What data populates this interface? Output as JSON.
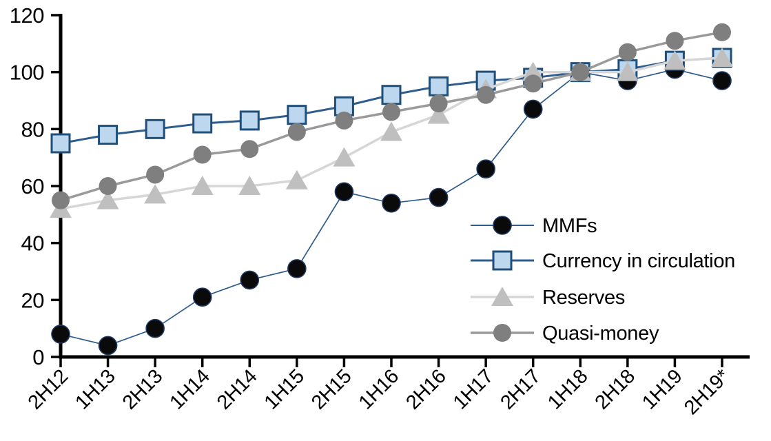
{
  "chart_data": {
    "type": "line",
    "title": "",
    "xlabel": "",
    "ylabel": "",
    "ylim": [
      0,
      120
    ],
    "ytick_step": 20,
    "yticks": [
      0,
      20,
      40,
      60,
      80,
      100,
      120
    ],
    "grid": false,
    "categories": [
      "2H12",
      "1H13",
      "2H13",
      "1H14",
      "2H14",
      "1H15",
      "2H15",
      "1H16",
      "2H16",
      "1H17",
      "2H17",
      "1H18",
      "2H18",
      "1H19",
      "2H19*"
    ],
    "series": [
      {
        "name": "MMFs",
        "marker": "circle",
        "marker_fill": "#0a0a0a",
        "marker_stroke": "#1f3864",
        "line_color": "#2e5c8c",
        "line_width": 1.7,
        "values": [
          8,
          4,
          10,
          21,
          27,
          31,
          58,
          54,
          56,
          66,
          87,
          100,
          97,
          101,
          97
        ]
      },
      {
        "name": "Currency in circulation",
        "marker": "square",
        "marker_fill": "#bdd7ee",
        "marker_stroke": "#1f4e79",
        "line_color": "#2e5c8c",
        "line_width": 3,
        "values": [
          75,
          78,
          80,
          82,
          83,
          85,
          88,
          92,
          95,
          97,
          98,
          100,
          101,
          104,
          105
        ]
      },
      {
        "name": "Reserves",
        "marker": "triangle",
        "marker_fill": "#bfbfbf",
        "marker_stroke": "",
        "line_color": "#d6d6d6",
        "line_width": 3.5,
        "values": [
          52,
          55,
          57,
          60,
          60,
          62,
          70,
          79,
          85,
          94,
          100,
          100,
          100,
          104,
          105
        ]
      },
      {
        "name": "Quasi-money",
        "marker": "circle",
        "marker_fill": "#7f7f7f",
        "marker_stroke": "",
        "line_color": "#9a9a9a",
        "line_width": 3.5,
        "values": [
          55,
          60,
          64,
          71,
          73,
          79,
          83,
          86,
          89,
          92,
          96,
          100,
          107,
          111,
          114
        ]
      }
    ],
    "legend": {
      "position": "inside-right",
      "items": [
        "MMFs",
        "Currency in circulation",
        "Reserves",
        "Quasi-money"
      ]
    }
  }
}
